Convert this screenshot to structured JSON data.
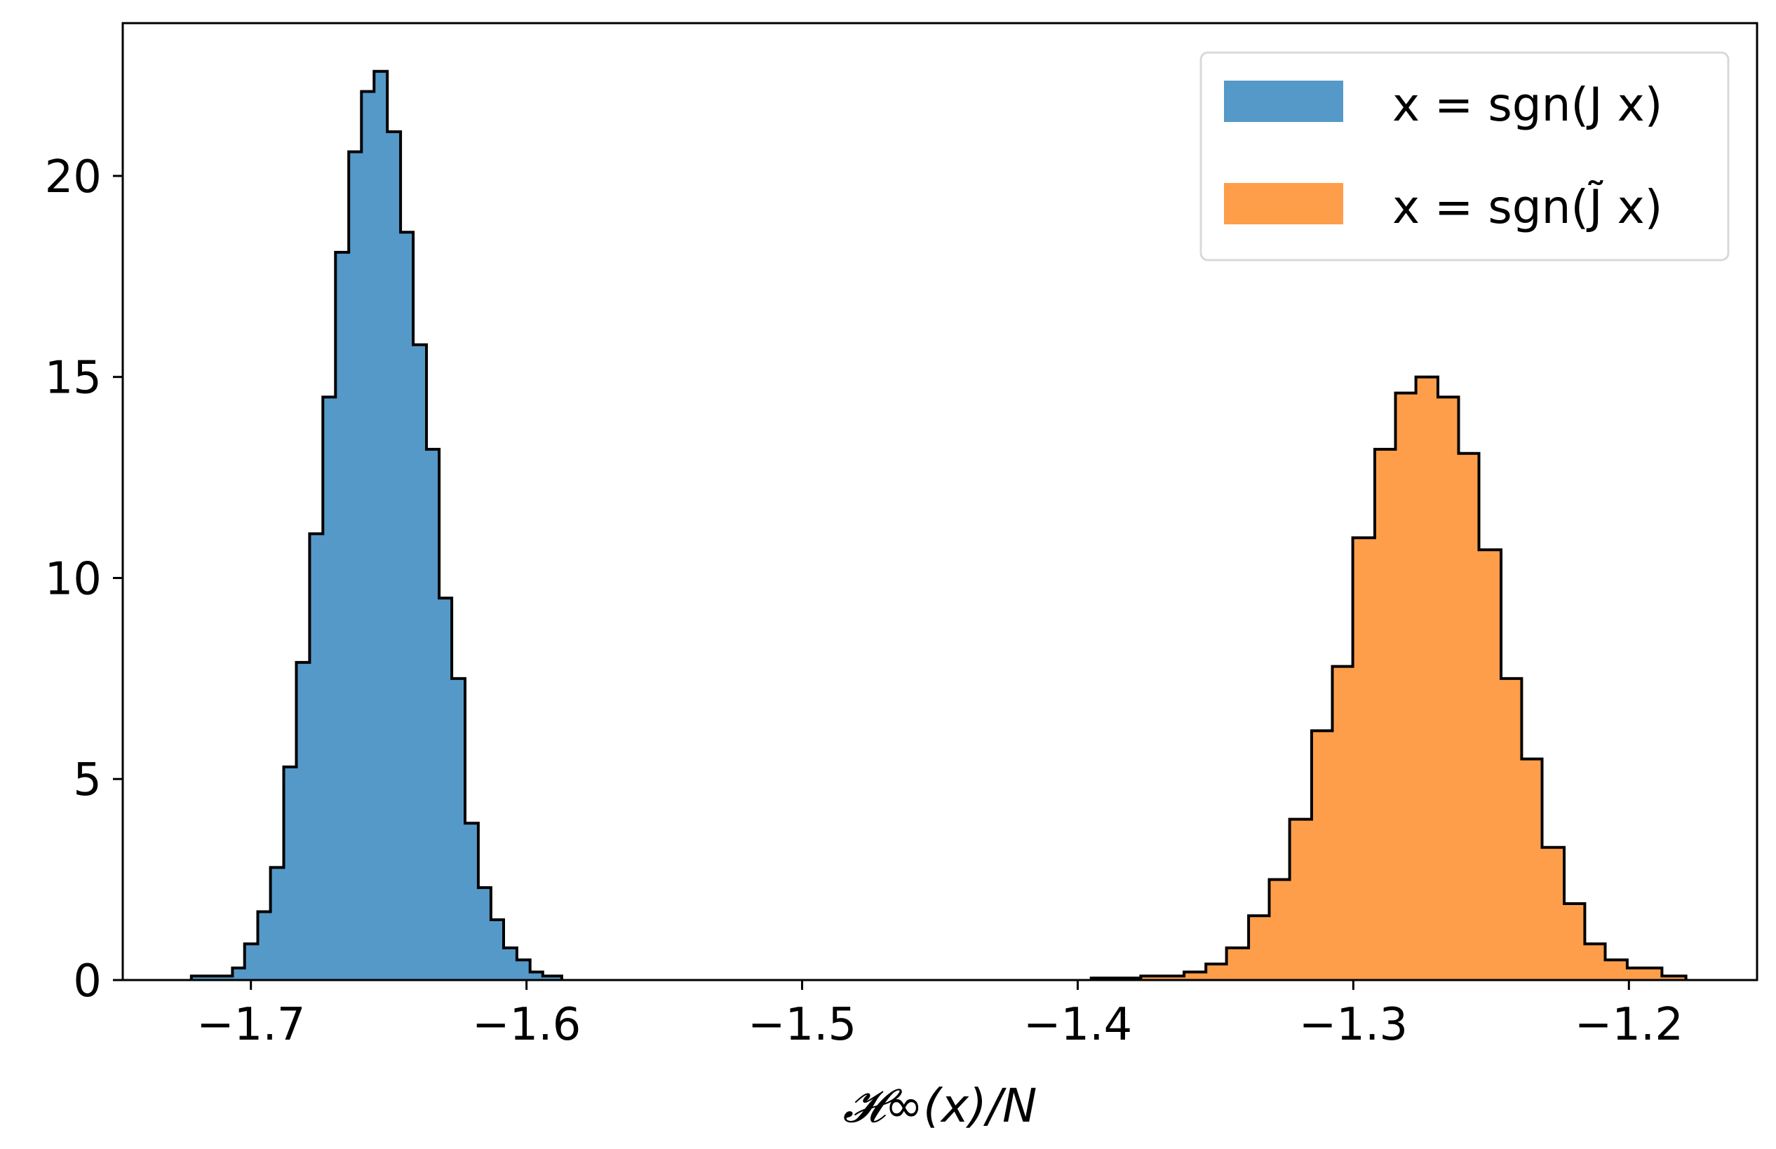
{
  "chart_data": {
    "type": "histogram",
    "xlabel": "𝓗∞(x)/N",
    "ylabel": "",
    "xlim": [
      -1.7465,
      -1.1535
    ],
    "ylim": [
      0,
      23.8
    ],
    "x_ticks": [
      -1.7,
      -1.6,
      -1.5,
      -1.4,
      -1.3,
      -1.2
    ],
    "x_tick_labels": [
      "−1.7",
      "−1.6",
      "−1.5",
      "−1.4",
      "−1.3",
      "−1.2"
    ],
    "y_ticks": [
      0,
      5,
      10,
      15,
      20
    ],
    "y_tick_labels": [
      "0",
      "5",
      "10",
      "15",
      "20"
    ],
    "grid": false,
    "legend_position": "top-right",
    "series": [
      {
        "name": "x = sgn(J x)",
        "color": "#5599c8",
        "bin_edges": [
          -1.7216,
          -1.712,
          -1.7067,
          -1.7023,
          -1.6975,
          -1.6929,
          -1.6881,
          -1.6835,
          -1.6787,
          -1.6739,
          -1.6693,
          -1.6645,
          -1.6599,
          -1.6553,
          -1.6505,
          -1.6457,
          -1.6411,
          -1.6363,
          -1.6317,
          -1.6271,
          -1.6223,
          -1.6175,
          -1.6129,
          -1.6083,
          -1.6035,
          -1.5987,
          -1.5941,
          -1.5893,
          -1.5872
        ],
        "values": [
          0.1,
          0.1,
          0.3,
          0.9,
          1.7,
          2.8,
          5.3,
          7.9,
          11.1,
          14.5,
          18.1,
          20.6,
          22.1,
          22.6,
          21.1,
          18.6,
          15.8,
          13.2,
          9.5,
          7.5,
          3.9,
          2.3,
          1.5,
          0.8,
          0.5,
          0.2,
          0.1,
          0.1
        ]
      },
      {
        "name": "x = sgn(J̃ x)",
        "color": "#fe9e4a",
        "bin_edges": [
          -1.3951,
          -1.3771,
          -1.3686,
          -1.3614,
          -1.3535,
          -1.346,
          -1.338,
          -1.3305,
          -1.3231,
          -1.3151,
          -1.3076,
          -1.3002,
          -1.2922,
          -1.2847,
          -1.2773,
          -1.2693,
          -1.2618,
          -1.2544,
          -1.2464,
          -1.2389,
          -1.2315,
          -1.2235,
          -1.216,
          -1.2086,
          -1.2006,
          -1.188,
          -1.1793
        ],
        "values": [
          0.05,
          0.1,
          0.1,
          0.2,
          0.4,
          0.8,
          1.6,
          2.5,
          4.0,
          6.2,
          7.8,
          11.0,
          13.2,
          14.6,
          15.0,
          14.5,
          13.1,
          10.7,
          7.5,
          5.5,
          3.3,
          1.9,
          0.9,
          0.5,
          0.3,
          0.1
        ]
      }
    ]
  }
}
